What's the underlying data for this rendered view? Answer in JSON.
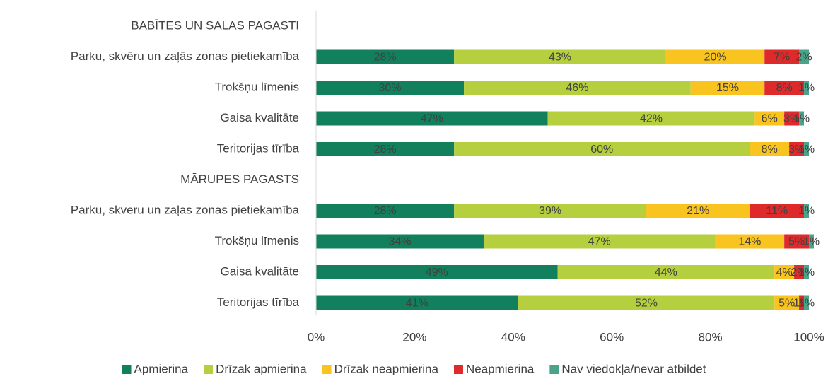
{
  "chart_data": {
    "type": "stacked_bar_horizontal",
    "categories": [
      "BABĪTES UN SALAS PAGASTI",
      "Parku, skvēru un zaļās zonas pietiekamība",
      "Trokšņu līmenis",
      "Gaisa kvalitāte",
      "Teritorijas tīrība",
      "MĀRUPES PAGASTS",
      "Parku, skvēru un zaļās zonas pietiekamība",
      "Trokšņu līmenis",
      "Gaisa kvalitāte",
      "Teritorijas tīrība"
    ],
    "series": [
      {
        "name": "Apmierina",
        "color": "#12805c",
        "values": [
          null,
          28,
          30,
          47,
          28,
          null,
          28,
          34,
          49,
          41
        ],
        "value_labels": [
          null,
          "28%",
          "30%",
          "47%",
          "28%",
          null,
          "28%",
          "34%",
          "49%",
          "41%"
        ]
      },
      {
        "name": "Drīzāk apmierina",
        "color": "#b5cf3e",
        "values": [
          null,
          43,
          46,
          42,
          60,
          null,
          39,
          47,
          44,
          52
        ],
        "value_labels": [
          null,
          "43%",
          "46%",
          "42%",
          "60%",
          null,
          "39%",
          "47%",
          "44%",
          "52%"
        ]
      },
      {
        "name": "Drīzāk neapmierina",
        "color": "#f9c41f",
        "values": [
          null,
          20,
          15,
          6,
          8,
          null,
          21,
          14,
          4,
          5
        ],
        "value_labels": [
          null,
          "20%",
          "15%",
          "6%",
          "8%",
          null,
          "21%",
          "14%",
          "4%",
          "5%"
        ]
      },
      {
        "name": "Neapmierina",
        "color": "#de2a2a",
        "values": [
          null,
          7,
          8,
          3,
          3,
          null,
          11,
          5,
          2,
          1
        ],
        "value_labels": [
          null,
          "7%",
          "8%",
          "3%",
          "3%",
          null,
          "11%",
          "5%",
          "2%",
          "1%"
        ]
      },
      {
        "name": "Nav viedokļa/nevar atbildēt",
        "color": "#4ba38a",
        "values": [
          null,
          2,
          1,
          1,
          1,
          null,
          1,
          1,
          1,
          1
        ],
        "value_labels": [
          null,
          "2%",
          "1%",
          "1%",
          "1%",
          null,
          "1%",
          "1%",
          "1%",
          "1%"
        ]
      }
    ],
    "xlim": [
      0,
      100
    ],
    "xticks": [
      {
        "value": 0,
        "label": "0%"
      },
      {
        "value": 20,
        "label": "20%"
      },
      {
        "value": 40,
        "label": "40%"
      },
      {
        "value": 60,
        "label": "60%"
      },
      {
        "value": 80,
        "label": "80%"
      },
      {
        "value": 100,
        "label": "100%"
      }
    ],
    "legend": "bottom"
  }
}
